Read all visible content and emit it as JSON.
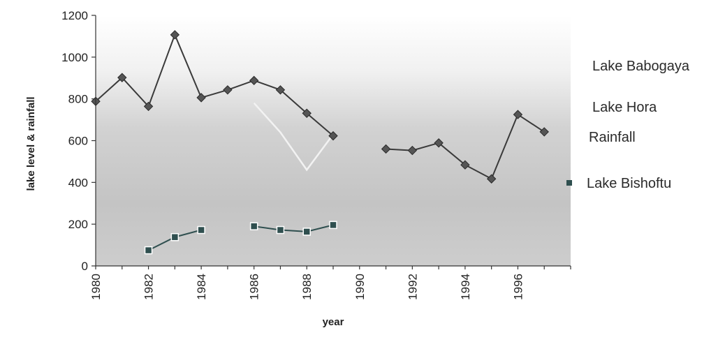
{
  "chart_data": {
    "type": "line",
    "xlabel": "year",
    "ylabel": "lake level & rainfall",
    "xlim": [
      1980,
      1998
    ],
    "ylim": [
      0,
      1200
    ],
    "yticks": [
      0,
      200,
      400,
      600,
      800,
      1000,
      1200
    ],
    "xtick_labels": [
      "1980",
      "1982",
      "1984",
      "1986",
      "1988",
      "1990",
      "1992",
      "1994",
      "1996"
    ],
    "grid": false,
    "legend_position": "right",
    "series": [
      {
        "name": "Lake Babogaya",
        "marker": "none",
        "color": "#e6e6e6",
        "points": []
      },
      {
        "name": "Lake Hora",
        "marker": "none",
        "color": "#f2f2f2",
        "points": [
          [
            1986,
            780
          ],
          [
            1987,
            640
          ],
          [
            1988,
            460
          ],
          [
            1989,
            630
          ]
        ]
      },
      {
        "name": "Rainfall",
        "marker": "diamond",
        "color": "#3a3a3a",
        "segments": [
          [
            [
              1980,
              788
            ],
            [
              1981,
              902
            ],
            [
              1982,
              764
            ],
            [
              1983,
              1107
            ],
            [
              1984,
              806
            ],
            [
              1985,
              843
            ],
            [
              1986,
              888
            ],
            [
              1987,
              843
            ],
            [
              1988,
              731
            ],
            [
              1989,
              623
            ]
          ],
          [
            [
              1991,
              560
            ],
            [
              1992,
              553
            ],
            [
              1993,
              589
            ],
            [
              1994,
              484
            ],
            [
              1995,
              417
            ],
            [
              1996,
              725
            ],
            [
              1997,
              642
            ]
          ]
        ]
      },
      {
        "name": "Lake Bishoftu",
        "marker": "square",
        "color": "#2f4f4f",
        "segments": [
          [
            [
              1982,
              75
            ],
            [
              1983,
              138
            ],
            [
              1984,
              172
            ]
          ],
          [
            [
              1986,
              190
            ],
            [
              1987,
              172
            ],
            [
              1988,
              164
            ],
            [
              1989,
              196
            ]
          ]
        ]
      }
    ]
  }
}
